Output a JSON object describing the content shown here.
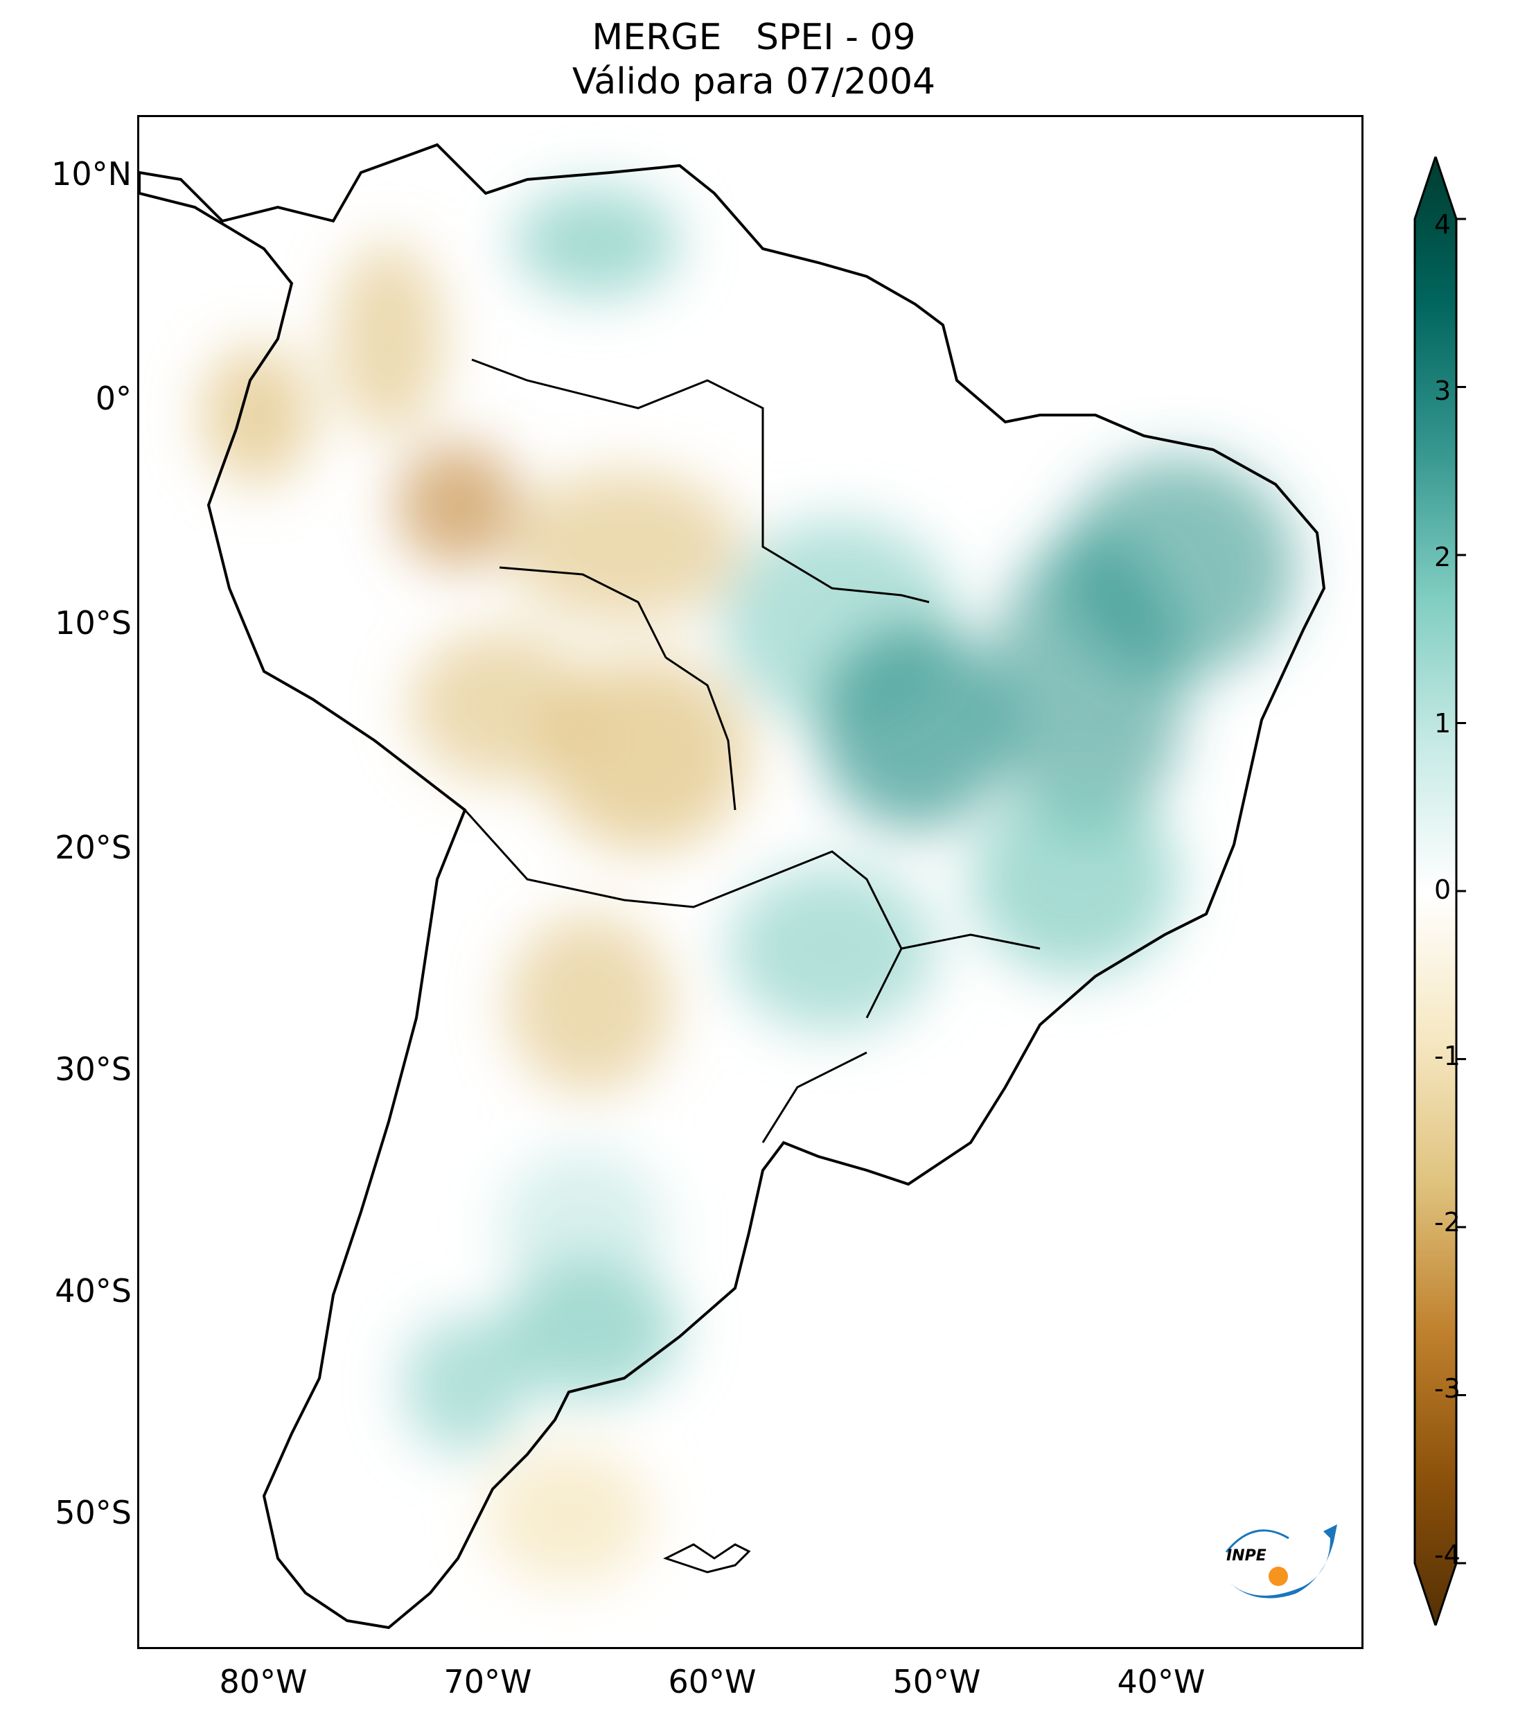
{
  "title": {
    "line1": "MERGE   SPEI - 09",
    "line2": "Válido para 07/2004"
  },
  "map": {
    "region": "South America",
    "variable": "SPEI - 09",
    "lat_range": [
      -56,
      13
    ],
    "lon_range": [
      -85,
      -30
    ],
    "lat_ticks": [
      {
        "value": 10,
        "label": "10°N"
      },
      {
        "value": 0,
        "label": "0°"
      },
      {
        "value": -10,
        "label": "10°S"
      },
      {
        "value": -20,
        "label": "20°S"
      },
      {
        "value": -30,
        "label": "30°S"
      },
      {
        "value": -40,
        "label": "40°S"
      },
      {
        "value": -50,
        "label": "50°S"
      }
    ],
    "lon_ticks": [
      {
        "value": -80,
        "label": "80°W"
      },
      {
        "value": -70,
        "label": "70°W"
      },
      {
        "value": -60,
        "label": "60°W"
      },
      {
        "value": -50,
        "label": "50°W"
      },
      {
        "value": -40,
        "label": "40°W"
      }
    ],
    "colorbar": {
      "min": -4,
      "max": 4,
      "ticks": [
        {
          "value": 4,
          "label": "4"
        },
        {
          "value": 3,
          "label": "3"
        },
        {
          "value": 2,
          "label": "2"
        },
        {
          "value": 1,
          "label": "1"
        },
        {
          "value": 0,
          "label": "0"
        },
        {
          "value": -1,
          "label": "-1"
        },
        {
          "value": -2,
          "label": "-2"
        },
        {
          "value": -3,
          "label": "-3"
        },
        {
          "value": -4,
          "label": "-4"
        }
      ],
      "colormap": "BrBG",
      "colors": [
        "#543005",
        "#8c510a",
        "#bf812d",
        "#dfc27d",
        "#f6e8c3",
        "#ffffff",
        "#c7eae5",
        "#80cdc1",
        "#35978f",
        "#01665e",
        "#003c30"
      ]
    },
    "logo_text": "INPE"
  }
}
